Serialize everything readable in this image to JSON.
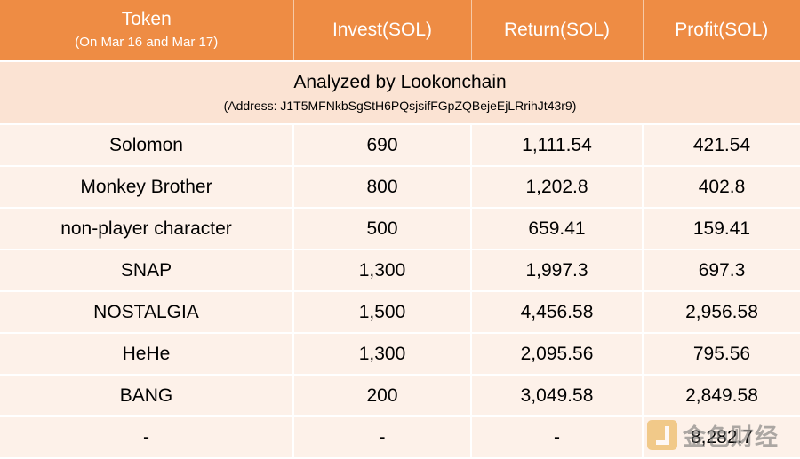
{
  "header": {
    "token_label": "Token",
    "token_sub": "(On Mar 16 and Mar 17)",
    "invest_label": "Invest(SOL)",
    "return_label": "Return(SOL)",
    "profit_label": "Profit(SOL)"
  },
  "band": {
    "title": "Analyzed by Lookonchain",
    "address": "(Address: J1T5MFNkbSgStH6PQsjsifFGpZQBejeEjLRrihJt43r9)"
  },
  "rows": [
    {
      "token": "Solomon",
      "invest": "690",
      "return": "1,111.54",
      "profit": "421.54"
    },
    {
      "token": "Monkey Brother",
      "invest": "800",
      "return": "1,202.8",
      "profit": "402.8"
    },
    {
      "token": "non-player character",
      "invest": "500",
      "return": "659.41",
      "profit": "159.41"
    },
    {
      "token": "SNAP",
      "invest": "1,300",
      "return": "1,997.3",
      "profit": "697.3"
    },
    {
      "token": "NOSTALGIA",
      "invest": "1,500",
      "return": "4,456.58",
      "profit": "2,956.58"
    },
    {
      "token": "HeHe",
      "invest": "1,300",
      "return": "2,095.56",
      "profit": "795.56"
    },
    {
      "token": "BANG",
      "invest": "200",
      "return": "3,049.58",
      "profit": "2,849.58"
    },
    {
      "token": "-",
      "invest": "-",
      "return": "-",
      "profit": "8,282.7"
    }
  ],
  "watermark": {
    "icon": "jinse-logo-icon",
    "text": "金色财经",
    "color": "#e8a93b"
  },
  "colors": {
    "header_bg": "#ee8c44",
    "band_bg": "#fbe3d3",
    "row_bg": "#fdf1e9"
  }
}
